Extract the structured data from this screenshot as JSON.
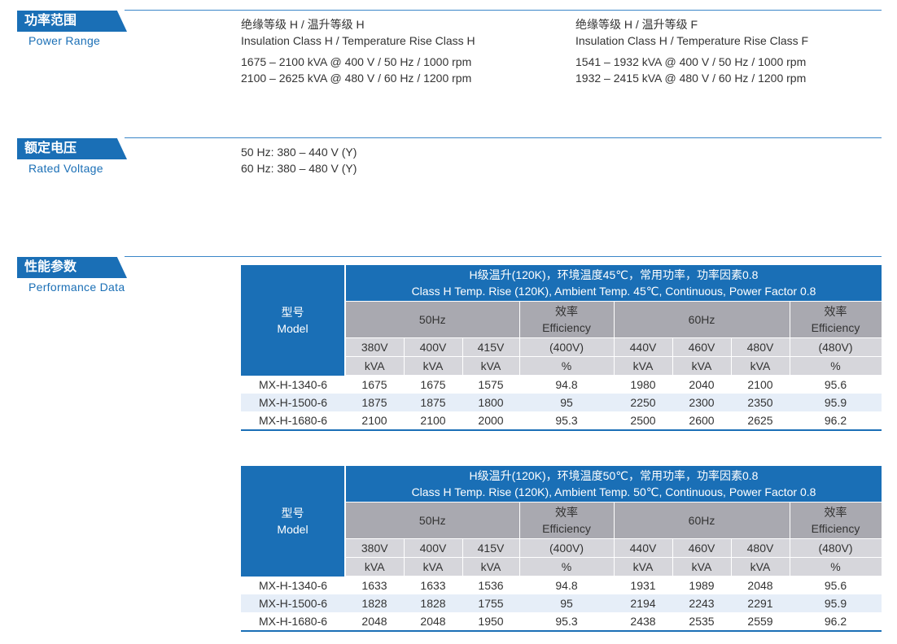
{
  "sections": {
    "power": {
      "cn": "功率范围",
      "en": "Power Range",
      "col1": {
        "cn": "绝缘等级 H / 温升等级 H",
        "en": "Insulation Class H / Temperature Rise Class H",
        "l1": "1675 – 2100 kVA @ 400 V / 50 Hz / 1000 rpm",
        "l2": "2100 – 2625 kVA @ 480 V / 60 Hz / 1200 rpm"
      },
      "col2": {
        "cn": "绝缘等级 H / 温升等级 F",
        "en": "Insulation Class H / Temperature Rise Class F",
        "l1": "1541 – 1932 kVA @ 400 V / 50 Hz / 1000 rpm",
        "l2": "1932 – 2415 kVA @ 480 V / 60 Hz / 1200 rpm"
      }
    },
    "voltage": {
      "cn": "额定电压",
      "en": "Rated Voltage",
      "l1": "50 Hz: 380 – 440 V (Y)",
      "l2": "60 Hz: 380 – 480 V (Y)"
    },
    "performance": {
      "cn": "性能参数",
      "en": "Performance Data"
    }
  },
  "table_headers": {
    "model_cn": "型号",
    "model_en": "Model",
    "hz50": "50Hz",
    "hz60": "60Hz",
    "eff_cn": "效率",
    "eff_en": "Efficiency",
    "v380": "380V",
    "v400": "400V",
    "v415": "415V",
    "eff400": "(400V)",
    "v440": "440V",
    "v460": "460V",
    "v480": "480V",
    "eff480": "(480V)",
    "kva": "kVA",
    "pct": "%"
  },
  "tables": [
    {
      "title_cn": "H级温升(120K)，环境温度45℃，常用功率，功率因素0.8",
      "title_en": "Class H Temp. Rise (120K), Ambient Temp. 45℃, Continuous, Power Factor 0.8",
      "rows": [
        {
          "model": "MX-H-1340-6",
          "c1": "1675",
          "c2": "1675",
          "c3": "1575",
          "e1": "94.8",
          "c4": "1980",
          "c5": "2040",
          "c6": "2100",
          "e2": "95.6"
        },
        {
          "model": "MX-H-1500-6",
          "c1": "1875",
          "c2": "1875",
          "c3": "1800",
          "e1": "95",
          "c4": "2250",
          "c5": "2300",
          "c6": "2350",
          "e2": "95.9"
        },
        {
          "model": "MX-H-1680-6",
          "c1": "2100",
          "c2": "2100",
          "c3": "2000",
          "e1": "95.3",
          "c4": "2500",
          "c5": "2600",
          "c6": "2625",
          "e2": "96.2"
        }
      ]
    },
    {
      "title_cn": "H级温升(120K)，环境温度50℃，常用功率，功率因素0.8",
      "title_en": "Class H Temp. Rise (120K), Ambient Temp. 50℃, Continuous, Power Factor 0.8",
      "rows": [
        {
          "model": "MX-H-1340-6",
          "c1": "1633",
          "c2": "1633",
          "c3": "1536",
          "e1": "94.8",
          "c4": "1931",
          "c5": "1989",
          "c6": "2048",
          "e2": "95.6"
        },
        {
          "model": "MX-H-1500-6",
          "c1": "1828",
          "c2": "1828",
          "c3": "1755",
          "e1": "95",
          "c4": "2194",
          "c5": "2243",
          "c6": "2291",
          "e2": "95.9"
        },
        {
          "model": "MX-H-1680-6",
          "c1": "2048",
          "c2": "2048",
          "c3": "1950",
          "e1": "95.3",
          "c4": "2438",
          "c5": "2535",
          "c6": "2559",
          "e2": "96.2"
        }
      ]
    }
  ]
}
